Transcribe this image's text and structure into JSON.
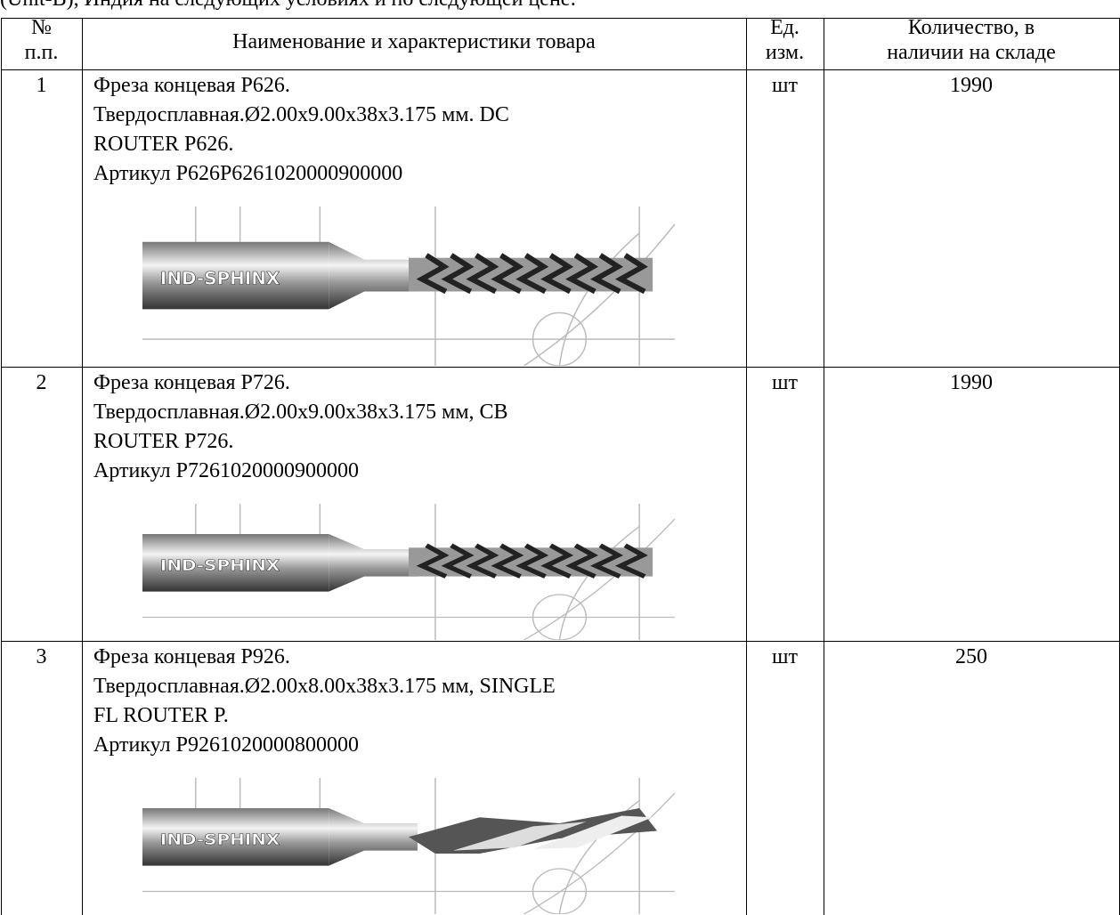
{
  "intro": "(Unit-B), Индия на следующих условиях и по следующей цене:",
  "table": {
    "header": [
      [
        "№",
        "п.п."
      ],
      [
        "Наименование и характеристики товара"
      ],
      [
        "Ед.",
        "изм."
      ],
      [
        "Количество, в",
        "наличии на складе"
      ]
    ],
    "rows": [
      {
        "number": "1",
        "name_lines": [
          "Фреза концевая Р626.",
          "Твердосплавная.Ø2.00x9.00x38x3.175 мм. DC",
          "ROUTER P626.",
          "Артикул Р626Р6261020000900000"
        ],
        "unit": "шт",
        "quantity": "1990",
        "image_label": "IND-SPHINX"
      },
      {
        "number": "2",
        "name_lines": [
          "Фреза концевая Р726.",
          "Твердосплавная.Ø2.00x9.00x38x3.175 мм, CB",
          "ROUTER P726.",
          "Артикул Р7261020000900000"
        ],
        "unit": "шт",
        "quantity": "1990",
        "image_label": "IND-SPHINX"
      },
      {
        "number": "3",
        "name_lines": [
          "Фреза концевая Р926.",
          "Твердосплавная.Ø2.00x8.00x38x3.175 мм, SINGLE",
          "FL ROUTER P.",
          "Артикул Р9261020000800000"
        ],
        "unit": "шт",
        "quantity": "250",
        "image_label": "IND-SPHINX"
      }
    ]
  }
}
